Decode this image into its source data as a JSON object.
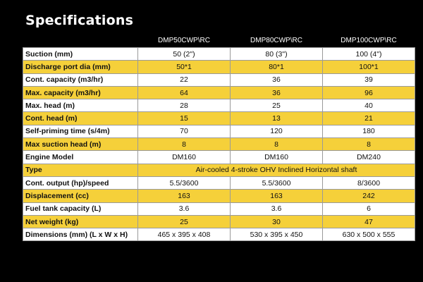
{
  "title": "Specifications",
  "columns": [
    "",
    "DMP50CWP\\RC",
    "DMP80CWP\\RC",
    "DMP100CWP\\RC"
  ],
  "row_colors": {
    "white": "#ffffff",
    "yellow": "#f5d03a"
  },
  "rows": [
    {
      "label": "Suction (mm)",
      "values": [
        "50 (2\")",
        "80 (3\")",
        "100 (4\")"
      ],
      "tone": "white"
    },
    {
      "label": "Discharge port dia (mm)",
      "values": [
        "50*1",
        "80*1",
        "100*1"
      ],
      "tone": "yellow"
    },
    {
      "label": "Cont. capacity (m3/hr)",
      "values": [
        "22",
        "36",
        "39"
      ],
      "tone": "white"
    },
    {
      "label": "Max. capacity (m3/hr)",
      "values": [
        "64",
        "36",
        "96"
      ],
      "tone": "yellow"
    },
    {
      "label": "Max. head (m)",
      "values": [
        "28",
        "25",
        "40"
      ],
      "tone": "white"
    },
    {
      "label": "Cont. head (m)",
      "values": [
        "15",
        "13",
        "21"
      ],
      "tone": "yellow"
    },
    {
      "label": "Self-priming time (s/4m)",
      "values": [
        "70",
        "120",
        "180"
      ],
      "tone": "white"
    },
    {
      "label": "Max suction head (m)",
      "values": [
        "8",
        "8",
        "8"
      ],
      "tone": "yellow"
    },
    {
      "label": "Engine Model",
      "values": [
        "DM160",
        "DM160",
        "DM240"
      ],
      "tone": "white"
    },
    {
      "label": "Type",
      "span_value": "Air-cooled 4-stroke OHV Inclined Horizontal shaft",
      "tone": "yellow"
    },
    {
      "label": "Cont. output (hp)/speed",
      "values": [
        "5.5/3600",
        "5.5/3600",
        "8/3600"
      ],
      "tone": "white"
    },
    {
      "label": "Displacement (cc)",
      "values": [
        "163",
        "163",
        "242"
      ],
      "tone": "yellow"
    },
    {
      "label": "Fuel tank capacity (L)",
      "values": [
        "3.6",
        "3.6",
        "6"
      ],
      "tone": "white"
    },
    {
      "label": "Net weight (kg)",
      "values": [
        "25",
        "30",
        "47"
      ],
      "tone": "yellow"
    },
    {
      "label": "Dimensions (mm) (L x W x H)",
      "values": [
        "465 x 395 x 408",
        "530 x 395 x 450",
        "630 x 500 x 555"
      ],
      "tone": "white"
    }
  ]
}
